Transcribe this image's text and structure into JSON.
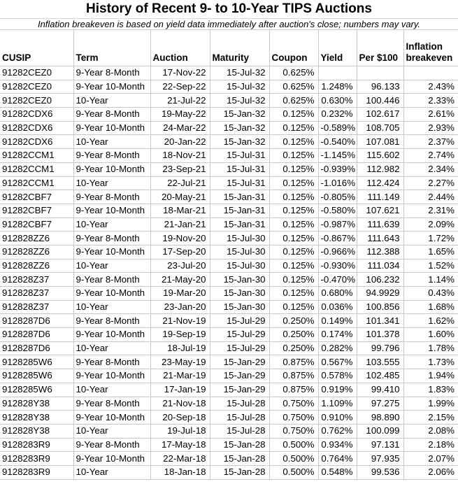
{
  "title": "History of Recent 9- to 10-Year TIPS Auctions",
  "subtitle": "Inflation breakeven is based on yield data immediately after auction's close; numbers may vary.",
  "colors": {
    "background": "#ffffff",
    "text": "#000000",
    "gridline": "#c9c9c9",
    "title_rule": "#d9d9d9"
  },
  "chart_data": {
    "type": "table",
    "title": "History of Recent 9- to 10-Year TIPS Auctions",
    "columns": [
      "CUSIP",
      "Term",
      "Auction",
      "Maturity",
      "Coupon",
      "Yield",
      "Per $100",
      "Inflation breakeven"
    ],
    "rows": [
      [
        "91282CEZ0",
        "9-Year 8-Month",
        "17-Nov-22",
        "15-Jul-32",
        "0.625%",
        "",
        "",
        ""
      ],
      [
        "91282CEZ0",
        "9-Year 10-Month",
        "22-Sep-22",
        "15-Jul-32",
        "0.625%",
        "1.248%",
        "96.133",
        "2.43%"
      ],
      [
        "91282CEZ0",
        "10-Year",
        "21-Jul-22",
        "15-Jul-32",
        "0.625%",
        "0.630%",
        "100.446",
        "2.33%"
      ],
      [
        "91282CDX6",
        "9-Year 8-Month",
        "19-May-22",
        "15-Jan-32",
        "0.125%",
        "0.232%",
        "102.617",
        "2.61%"
      ],
      [
        "91282CDX6",
        "9-Year 10-Month",
        "24-Mar-22",
        "15-Jan-32",
        "0.125%",
        "-0.589%",
        "108.705",
        "2.93%"
      ],
      [
        "91282CDX6",
        "10-Year",
        "20-Jan-22",
        "15-Jan-32",
        "0.125%",
        "-0.540%",
        "107.081",
        "2.37%"
      ],
      [
        "91282CCM1",
        "9-Year 8-Month",
        "18-Nov-21",
        "15-Jul-31",
        "0.125%",
        "-1.145%",
        "115.602",
        "2.74%"
      ],
      [
        "91282CCM1",
        "9-Year 10-Month",
        "23-Sep-21",
        "15-Jul-31",
        "0.125%",
        "-0.939%",
        "112.982",
        "2.34%"
      ],
      [
        "91282CCM1",
        "10-Year",
        "22-Jul-21",
        "15-Jul-31",
        "0.125%",
        "-1.016%",
        "112.424",
        "2.27%"
      ],
      [
        "91282CBF7",
        "9-Year 8-Month",
        "20-May-21",
        "15-Jan-31",
        "0.125%",
        "-0.805%",
        "111.149",
        "2.44%"
      ],
      [
        "91282CBF7",
        "9-Year 10-Month",
        "18-Mar-21",
        "15-Jan-31",
        "0.125%",
        "-0.580%",
        "107.621",
        "2.31%"
      ],
      [
        "91282CBF7",
        "10-Year",
        "21-Jan-21",
        "15-Jan-31",
        "0.125%",
        "-0.987%",
        "111.639",
        "2.09%"
      ],
      [
        "912828ZZ6",
        "9-Year 8-Month",
        "19-Nov-20",
        "15-Jul-30",
        "0.125%",
        "-0.867%",
        "111.643",
        "1.72%"
      ],
      [
        "912828ZZ6",
        "9-Year 10-Month",
        "17-Sep-20",
        "15-Jul-30",
        "0.125%",
        "-0.966%",
        "112.388",
        "1.65%"
      ],
      [
        "912828ZZ6",
        "10-Year",
        "23-Jul-20",
        "15-Jul-30",
        "0.125%",
        "-0.930%",
        "111.034",
        "1.52%"
      ],
      [
        "912828Z37",
        "9-Year 8-Month",
        "21-May-20",
        "15-Jan-30",
        "0.125%",
        "-0.470%",
        "106.232",
        "1.14%"
      ],
      [
        "912828Z37",
        "9-Year 10-Month",
        "19-Mar-20",
        "15-Jan-30",
        "0.125%",
        "0.680%",
        "94.9929",
        "0.43%"
      ],
      [
        "912828Z37",
        "10-Year",
        "23-Jan-20",
        "15-Jan-30",
        "0.125%",
        "0.036%",
        "100.856",
        "1.68%"
      ],
      [
        "9128287D6",
        "9-Year 8-Month",
        "21-Nov-19",
        "15-Jul-29",
        "0.250%",
        "0.149%",
        "101.341",
        "1.62%"
      ],
      [
        "9128287D6",
        "9-Year 10-Month",
        "19-Sep-19",
        "15-Jul-29",
        "0.250%",
        "0.174%",
        "101.378",
        "1.60%"
      ],
      [
        "9128287D6",
        "10-Year",
        "18-Jul-19",
        "15-Jul-29",
        "0.250%",
        "0.282%",
        "99.796",
        "1.78%"
      ],
      [
        "9128285W6",
        "9-Year 8-Month",
        "23-May-19",
        "15-Jan-29",
        "0.875%",
        "0.567%",
        "103.555",
        "1.73%"
      ],
      [
        "9128285W6",
        "9-Year 10-Month",
        "21-Mar-19",
        "15-Jan-29",
        "0.875%",
        "0.578%",
        "102.485",
        "1.94%"
      ],
      [
        "9128285W6",
        "10-Year",
        "17-Jan-19",
        "15-Jan-29",
        "0.875%",
        "0.919%",
        "99.410",
        "1.83%"
      ],
      [
        "912828Y38",
        "9-Year 8-Month",
        "21-Nov-18",
        "15-Jul-28",
        "0.750%",
        "1.109%",
        "97.275",
        "1.99%"
      ],
      [
        "912828Y38",
        "9-Year 10-Month",
        "20-Sep-18",
        "15-Jul-28",
        "0.750%",
        "0.910%",
        "98.890",
        "2.15%"
      ],
      [
        "912828Y38",
        "10-Year",
        "19-Jul-18",
        "15-Jul-28",
        "0.750%",
        "0.762%",
        "100.099",
        "2.08%"
      ],
      [
        "9128283R9",
        "9-Year 8-Month",
        "17-May-18",
        "15-Jan-28",
        "0.500%",
        "0.934%",
        "97.131",
        "2.18%"
      ],
      [
        "9128283R9",
        "9-Year 10-Month",
        "22-Mar-18",
        "15-Jan-28",
        "0.500%",
        "0.764%",
        "97.935",
        "2.07%"
      ],
      [
        "9128283R9",
        "10-Year",
        "18-Jan-18",
        "15-Jan-28",
        "0.500%",
        "0.548%",
        "99.536",
        "2.06%"
      ]
    ]
  }
}
